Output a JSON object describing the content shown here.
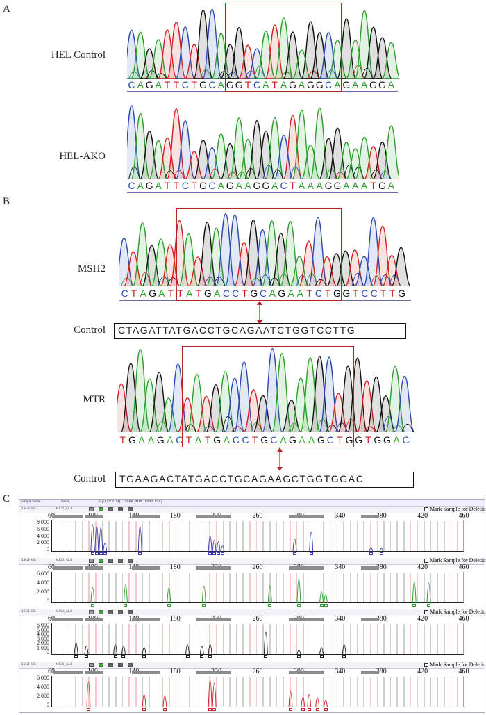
{
  "panel_a": {
    "letter": "A",
    "samples": [
      {
        "label": "HEL Control",
        "sequence": "CAGATTCTGCAGGTCATAGAGGCAGAAGGA"
      },
      {
        "label": "HEL-AKO",
        "sequence": "CAGATTCTGCAGAAGGACTAAAGGAAATGA"
      }
    ]
  },
  "panel_b": {
    "letter": "B",
    "samples": [
      {
        "label": "MSH2",
        "sequence": "CTAGATTATGACCTGCAGAATCTGGTCCTTG",
        "control_label": "Control",
        "control_sequence": "CTAGATTATGACCTGCAGAATCTGGTCCTTG"
      },
      {
        "label": "MTR",
        "sequence": "TGAAGACTATGACCTGCAGAAGCTGGTGGAC",
        "control_label": "Control",
        "control_sequence": "TGAAGACTATGACCTGCAGAAGCTGGTGGAC"
      }
    ]
  },
  "panel_c": {
    "letter": "C",
    "header": {
      "col1": "Sample Name",
      "col2": "Panel",
      "col3": "SQO",
      "col4": "SVN",
      "col5": "SQ",
      "col6": "SSPK",
      "col7": "MIX",
      "col8": "OMR",
      "col9": "COQ"
    },
    "mark_label": "Mark Sample for Deletion",
    "scale": [
      "60",
      "100",
      "140",
      "180",
      "220",
      "260",
      "300",
      "340",
      "380",
      "420",
      "460"
    ],
    "rows": [
      {
        "sample": "XSG1-335",
        "panel": "MS21_v2.1",
        "color": "#3a3ab0",
        "yticks": [
          "8 000",
          "6 000",
          "4 000",
          "2 000",
          "0"
        ]
      },
      {
        "sample": "XSG1-335",
        "panel": "MS21_v2.1",
        "color": "#2aa02a",
        "yticks": [
          "6 000",
          "4 000",
          "2 000",
          "0"
        ]
      },
      {
        "sample": "XSG1-335",
        "panel": "MS21_v2.1",
        "color": "#222222",
        "yticks": [
          "6 000",
          "5 000",
          "4 000",
          "3 000",
          "2 000",
          "1 000",
          "0"
        ]
      },
      {
        "sample": "XSG1-335",
        "panel": "MS21_v2.1",
        "color": "#cc2222",
        "yticks": [
          "6 000",
          "4 000",
          "2 000",
          "0"
        ]
      }
    ]
  },
  "colors": {
    "A": "#2aa02a",
    "C": "#2a4ab0",
    "G": "#111111",
    "T": "#d42020",
    "box": "#b22222"
  }
}
